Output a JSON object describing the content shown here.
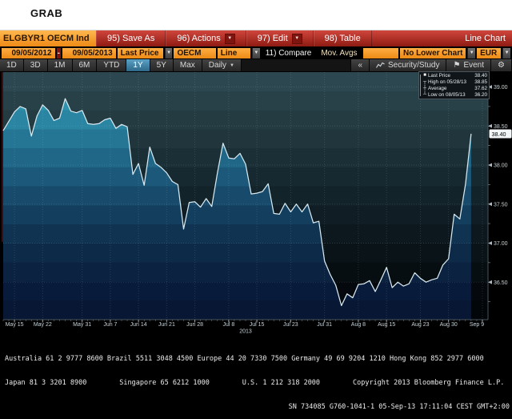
{
  "header": {
    "title": "GRAB"
  },
  "toolbar": {
    "security": "ELGBYR1 OECM Ind",
    "save_as": "95) Save As",
    "actions": "96) Actions",
    "edit": "97) Edit",
    "table": "98) Table",
    "chart_type_label": "Line Chart",
    "dropdown_glyph": "▼"
  },
  "controls": {
    "date_from": "09/05/2012",
    "date_separator": "-",
    "date_to": "09/05/2013",
    "price_field": "Last Price",
    "source": "OECM",
    "style": "Line",
    "compare": "11) Compare",
    "mov_avgs": "Mov. Avgs",
    "lower_chart": "No Lower Chart",
    "currency": "EUR",
    "dropdown_glyph": "▼"
  },
  "tabs": {
    "items": [
      {
        "label": "1D"
      },
      {
        "label": "3D"
      },
      {
        "label": "1M"
      },
      {
        "label": "6M"
      },
      {
        "label": "YTD"
      },
      {
        "label": "1Y"
      },
      {
        "label": "5Y"
      },
      {
        "label": "Max"
      }
    ],
    "active": "1Y",
    "period": "Daily",
    "collapse": "«",
    "security_study": "Security/Study",
    "event": "Event",
    "gear_glyph": "⚙",
    "event_glyph": "⚑",
    "dropdown_glyph": "▼"
  },
  "chart_data": {
    "type": "area",
    "title": "ELGBYR1 OECM Ind - Last Price",
    "x": [
      "2013-05-13",
      "2013-05-14",
      "2013-05-15",
      "2013-05-16",
      "2013-05-17",
      "2013-05-20",
      "2013-05-21",
      "2013-05-22",
      "2013-05-23",
      "2013-05-24",
      "2013-05-27",
      "2013-05-28",
      "2013-05-29",
      "2013-05-30",
      "2013-05-31",
      "2013-06-03",
      "2013-06-04",
      "2013-06-05",
      "2013-06-06",
      "2013-06-07",
      "2013-06-10",
      "2013-06-11",
      "2013-06-12",
      "2013-06-13",
      "2013-06-14",
      "2013-06-17",
      "2013-06-18",
      "2013-06-19",
      "2013-06-20",
      "2013-06-21",
      "2013-06-24",
      "2013-06-25",
      "2013-06-26",
      "2013-06-27",
      "2013-06-28",
      "2013-07-01",
      "2013-07-02",
      "2013-07-03",
      "2013-07-04",
      "2013-07-05",
      "2013-07-08",
      "2013-07-09",
      "2013-07-10",
      "2013-07-11",
      "2013-07-12",
      "2013-07-15",
      "2013-07-16",
      "2013-07-17",
      "2013-07-18",
      "2013-07-19",
      "2013-07-22",
      "2013-07-23",
      "2013-07-24",
      "2013-07-25",
      "2013-07-26",
      "2013-07-29",
      "2013-07-30",
      "2013-07-31",
      "2013-08-01",
      "2013-08-02",
      "2013-08-05",
      "2013-08-06",
      "2013-08-07",
      "2013-08-08",
      "2013-08-09",
      "2013-08-12",
      "2013-08-13",
      "2013-08-14",
      "2013-08-15",
      "2013-08-16",
      "2013-08-19",
      "2013-08-20",
      "2013-08-21",
      "2013-08-22",
      "2013-08-23",
      "2013-08-26",
      "2013-08-27",
      "2013-08-28",
      "2013-08-29",
      "2013-08-30",
      "2013-09-02",
      "2013-09-03",
      "2013-09-04",
      "2013-09-05"
    ],
    "values": [
      38.44,
      38.56,
      38.68,
      38.75,
      38.72,
      38.37,
      38.63,
      38.77,
      38.7,
      38.57,
      38.6,
      38.85,
      38.69,
      38.67,
      38.7,
      38.53,
      38.52,
      38.53,
      38.58,
      38.6,
      38.47,
      38.52,
      38.49,
      37.88,
      38.02,
      37.74,
      38.23,
      38.02,
      37.97,
      37.9,
      37.79,
      37.75,
      37.18,
      37.52,
      37.53,
      37.46,
      37.57,
      37.47,
      37.9,
      38.28,
      38.09,
      38.08,
      38.15,
      38.01,
      37.63,
      37.64,
      37.66,
      37.76,
      37.38,
      37.37,
      37.51,
      37.4,
      37.5,
      37.4,
      37.5,
      37.26,
      37.28,
      36.77,
      36.6,
      36.46,
      36.2,
      36.35,
      36.3,
      36.47,
      36.48,
      36.52,
      36.38,
      36.53,
      36.69,
      36.43,
      36.5,
      36.45,
      36.48,
      36.62,
      36.55,
      36.5,
      36.53,
      36.55,
      36.72,
      36.8,
      37.37,
      37.31,
      37.75,
      38.4
    ],
    "ylim": [
      36.02,
      39.19
    ],
    "yticks": [
      36.5,
      37.0,
      37.5,
      38.0,
      38.5,
      39.0
    ],
    "x_domain": [
      0,
      86
    ],
    "xticks": [
      {
        "i": 2,
        "label": "May 15"
      },
      {
        "i": 7,
        "label": "May 22"
      },
      {
        "i": 14,
        "label": "May 31"
      },
      {
        "i": 19,
        "label": "Jun 7"
      },
      {
        "i": 24,
        "label": "Jun 14"
      },
      {
        "i": 29,
        "label": "Jun 21"
      },
      {
        "i": 34,
        "label": "Jun 28"
      },
      {
        "i": 40,
        "label": "Jul 8"
      },
      {
        "i": 45,
        "label": "Jul 15"
      },
      {
        "i": 51,
        "label": "Jul 23"
      },
      {
        "i": 57,
        "label": "Jul 31"
      },
      {
        "i": 63,
        "label": "Aug 8"
      },
      {
        "i": 68,
        "label": "Aug 15"
      },
      {
        "i": 74,
        "label": "Aug 23"
      },
      {
        "i": 79,
        "label": "Aug 30"
      },
      {
        "i": 85,
        "label": "Sep 9"
      }
    ],
    "year_label": {
      "i": 43,
      "label": "2013"
    },
    "last_price_label": "38.40",
    "legend": {
      "items": [
        {
          "marker": "■",
          "label": "Last Price",
          "value": "38.40"
        },
        {
          "marker": "┬",
          "label": "High on 05/28/13",
          "value": "38.85"
        },
        {
          "marker": "┼",
          "label": "Average",
          "value": "37.62"
        },
        {
          "marker": "┴",
          "label": "Low on 08/05/13",
          "value": "36.20"
        }
      ]
    },
    "colors": {
      "line": "#d7e9f0",
      "grid": "rgba(200,220,230,0.16)",
      "axis_text": "#c7d3d9",
      "bg_bands": [
        "#2c4750",
        "#284148",
        "#243b42",
        "#20353c",
        "#1b2f36",
        "#172930",
        "#13232a",
        "#101d24",
        "#0c181e",
        "#091318",
        "#070e12",
        "#05090d",
        "#030609"
      ],
      "fill_bands": [
        "#36a3bd",
        "#2f93ae",
        "#2a85a2",
        "#257594",
        "#206687",
        "#1b5879",
        "#174a6b",
        "#133e5e",
        "#103351",
        "#0d2a48",
        "#0b2240",
        "#091b3a",
        "#081734"
      ]
    }
  },
  "footer": {
    "lines": [
      "Australia 61 2 9777 8600 Brazil 5511 3048 4500 Europe 44 20 7330 7500 Germany 49 69 9204 1210 Hong Kong 852 2977 6000",
      "Japan 81 3 3201 8900        Singapore 65 6212 1000        U.S. 1 212 318 2000        Copyright 2013 Bloomberg Finance L.P.",
      "SN 734085 G760-1041-1 05-Sep-13 17:11:04 CEST GMT+2:00"
    ]
  }
}
